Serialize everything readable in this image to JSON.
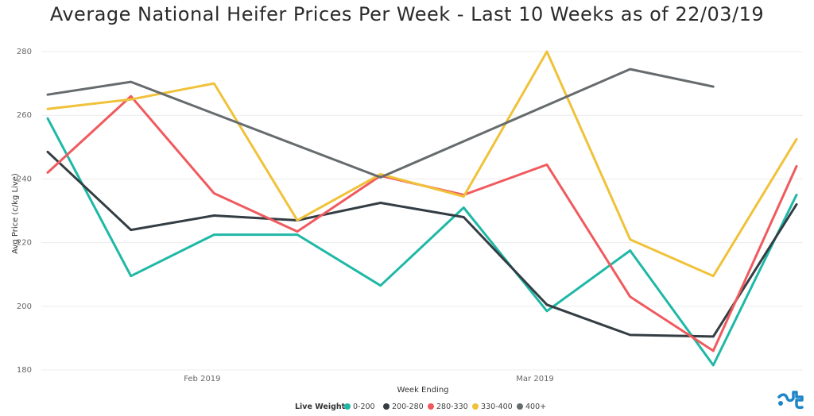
{
  "chart_data": {
    "type": "line",
    "title": "Average National Heifer Prices Per Week - Last 10 Weeks as of 22/03/19",
    "xlabel": "Week Ending",
    "ylabel": "Avg Price (c/kg Live)",
    "x": [
      "2019-01-19",
      "2019-01-26",
      "2019-02-02",
      "2019-02-09",
      "2019-02-16",
      "2019-02-23",
      "2019-03-02",
      "2019-03-09",
      "2019-03-16",
      "2019-03-22"
    ],
    "x_tick_labels": [
      "Feb 2019",
      "Mar 2019"
    ],
    "y_ticks": [
      180,
      200,
      220,
      240,
      260,
      280
    ],
    "ylim": [
      180,
      282
    ],
    "grid": true,
    "legend_title": "Live Weight",
    "legend_position": "bottom",
    "series": [
      {
        "name": "0-200",
        "color": "#1FB8A6",
        "values": [
          259,
          209.5,
          222.5,
          222.5,
          206.5,
          231,
          198.5,
          217.5,
          181.5,
          235
        ]
      },
      {
        "name": "200-280",
        "color": "#333D43",
        "values": [
          248.5,
          224,
          228.5,
          227,
          232.5,
          228,
          200.5,
          191,
          190.5,
          232
        ]
      },
      {
        "name": "280-330",
        "color": "#F05A5E",
        "values": [
          242,
          266,
          235.5,
          223.5,
          241,
          235,
          244.5,
          203,
          186,
          244
        ]
      },
      {
        "name": "330-400",
        "color": "#F0C23A",
        "values": [
          262,
          265,
          270,
          227,
          241.5,
          234.5,
          280,
          221,
          209.5,
          252.5
        ]
      },
      {
        "name": "400+",
        "color": "#666B6E",
        "values": [
          266.5,
          270.5,
          null,
          null,
          240.5,
          null,
          null,
          274.5,
          269,
          null
        ]
      }
    ]
  }
}
